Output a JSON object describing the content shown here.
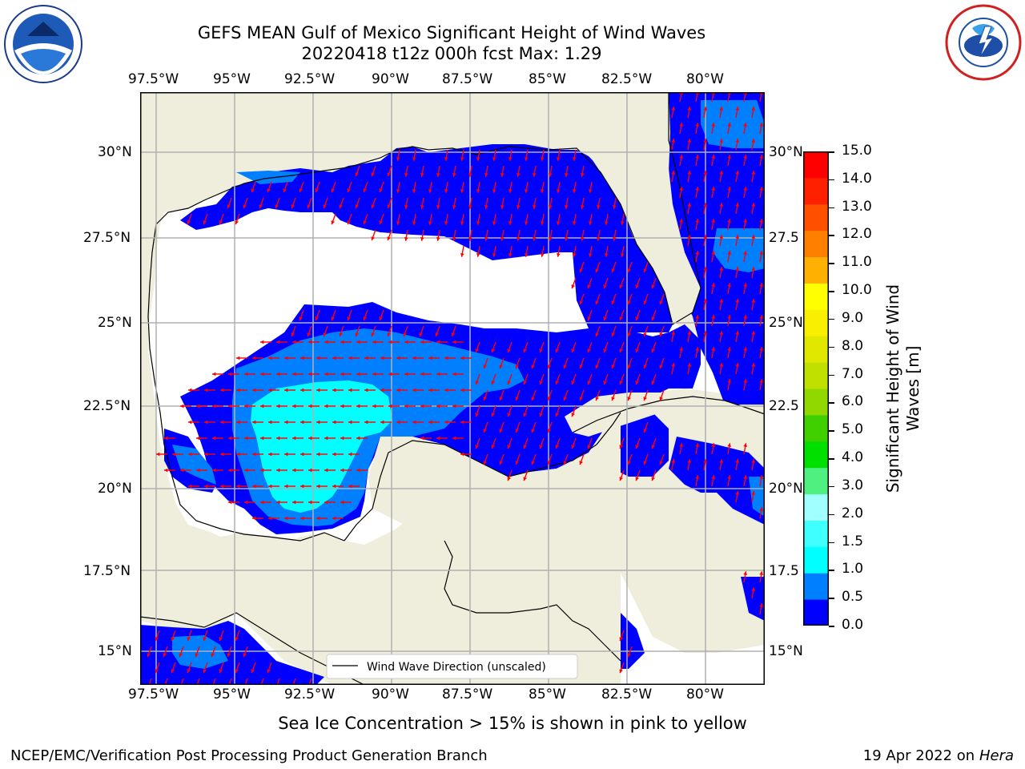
{
  "header": {
    "title_line1": "GEFS MEAN Gulf of Mexico Significant Height of Wind Waves",
    "title_line2": "20220418 t12z 000h fcst   Max: 1.29"
  },
  "map": {
    "lon_ticks_top": [
      "97.5°W",
      "95°W",
      "92.5°W",
      "90°W",
      "87.5°W",
      "85°W",
      "82.5°W",
      "80°W"
    ],
    "lon_ticks_bottom": [
      "97.5°W",
      "95°W",
      "92.5°W",
      "90°W",
      "87.5°W",
      "85°W",
      "82.5°W",
      "80°W"
    ],
    "lat_ticks_left": [
      "30°N",
      "27.5°N",
      "25°N",
      "22.5°N",
      "20°N",
      "17.5°N",
      "15°N"
    ],
    "lat_ticks_right": [
      "30°N",
      "27.5",
      "25°N",
      "22.5",
      "20°N",
      "17.5",
      "15°N"
    ],
    "legend_label": "Wind Wave Direction (unscaled)",
    "colors": {
      "land": "#efeedc",
      "ocean_low": "#0000ff",
      "ocean_mid": "#0080ff",
      "ocean_high": "#00ffff",
      "arrow": "#ff0000",
      "grid": "#b0b0b0"
    }
  },
  "colorbar": {
    "label": "Significant Height of Wind Waves [m]",
    "ticks": [
      "15.0",
      "14.0",
      "13.0",
      "12.0",
      "11.0",
      "10.0",
      "9.0",
      "8.0",
      "7.0",
      "6.0",
      "5.0",
      "4.0",
      "3.0",
      "2.0",
      "1.5",
      "1.0",
      "0.5",
      "0.0"
    ],
    "colors": [
      "#0000ff",
      "#0080ff",
      "#00ffff",
      "#40ffff",
      "#a0ffff",
      "#50f080",
      "#00e000",
      "#40d000",
      "#90d800",
      "#c0e000",
      "#e0e800",
      "#f8f000",
      "#ffff00",
      "#ffb000",
      "#ff8000",
      "#ff5000",
      "#ff2000",
      "#ff0000"
    ]
  },
  "footer": {
    "note": "Sea Ice Concentration > 15% is shown in pink to yellow",
    "org": "NCEP/EMC/Verification Post Processing Product Generation Branch",
    "date": "19 Apr 2022 on",
    "machine": "Hera"
  }
}
